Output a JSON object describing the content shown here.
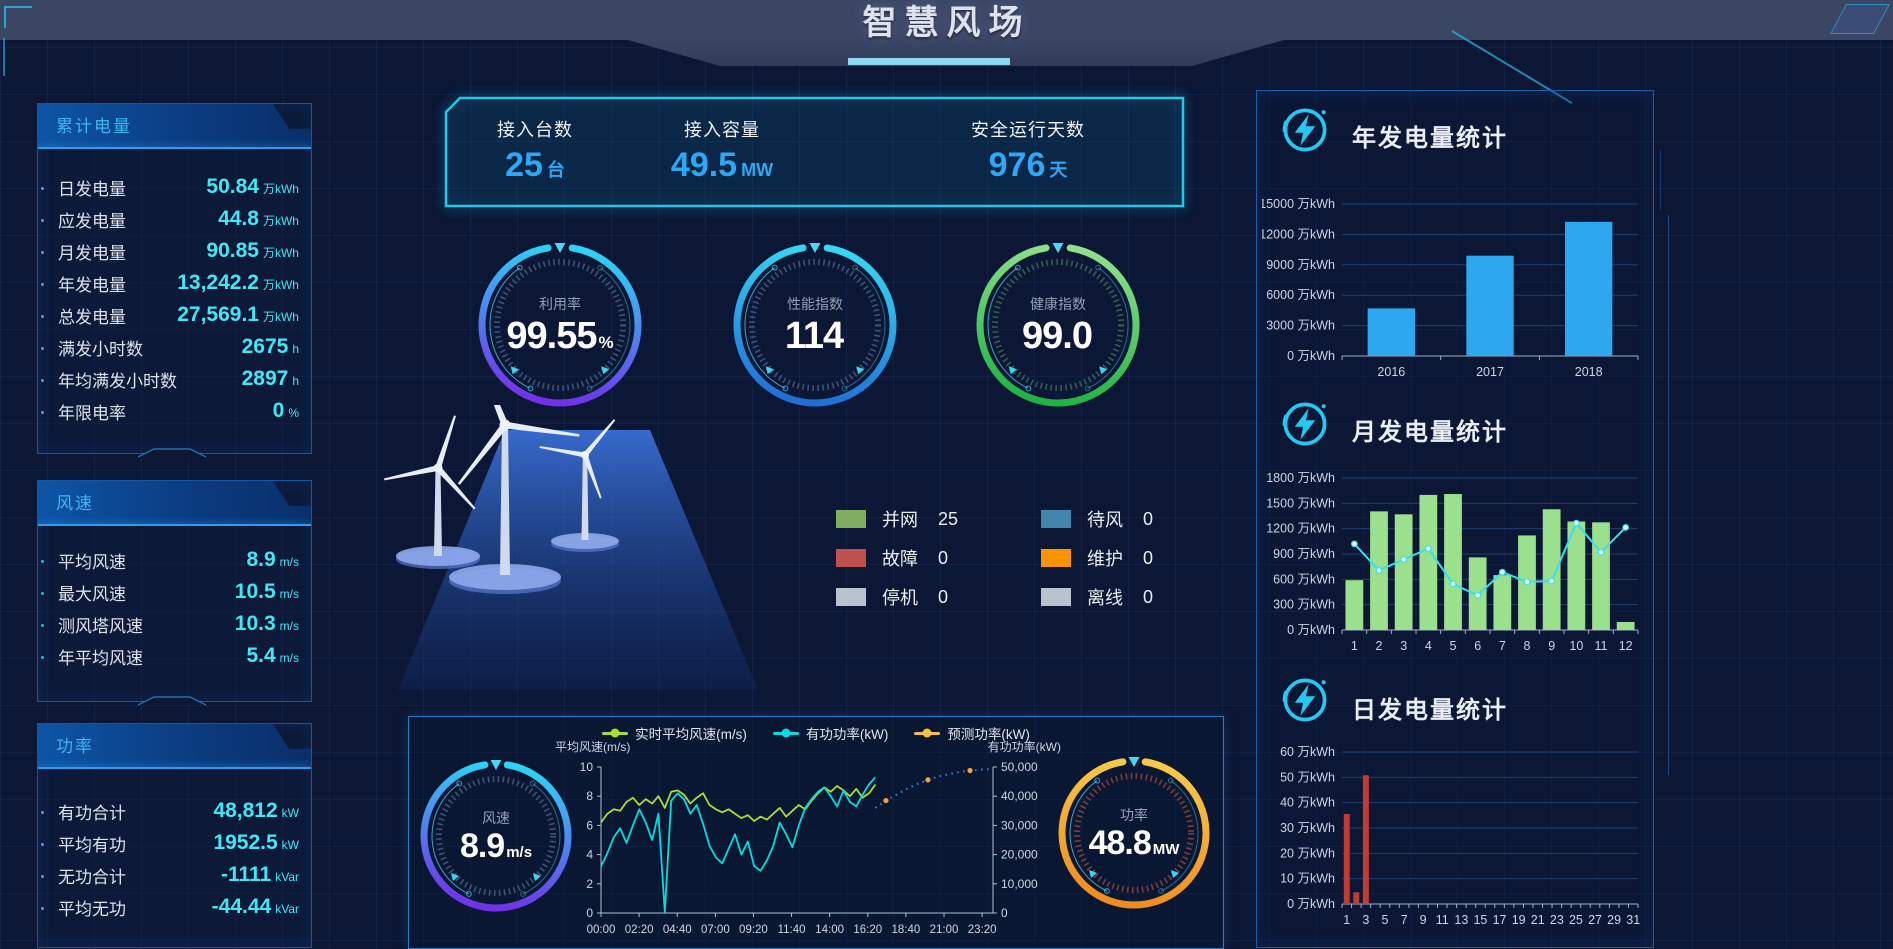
{
  "header": {
    "title": "智慧风场"
  },
  "left_panels": [
    {
      "title": "累计电量",
      "rows": [
        {
          "label": "日发电量",
          "value": "50.84",
          "unit": "万kWh"
        },
        {
          "label": "应发电量",
          "value": "44.8",
          "unit": "万kWh"
        },
        {
          "label": "月发电量",
          "value": "90.85",
          "unit": "万kWh"
        },
        {
          "label": "年发电量",
          "value": "13,242.2",
          "unit": "万kWh"
        },
        {
          "label": "总发电量",
          "value": "27,569.1",
          "unit": "万kWh"
        },
        {
          "label": "满发小时数",
          "value": "2675",
          "unit": "h"
        },
        {
          "label": "年均满发小时数",
          "value": "2897",
          "unit": "h"
        },
        {
          "label": "年限电率",
          "value": "0",
          "unit": "%"
        }
      ]
    },
    {
      "title": "风速",
      "rows": [
        {
          "label": "平均风速",
          "value": "8.9",
          "unit": "m/s"
        },
        {
          "label": "最大风速",
          "value": "10.5",
          "unit": "m/s"
        },
        {
          "label": "测风塔风速",
          "value": "10.3",
          "unit": "m/s"
        },
        {
          "label": "年平均风速",
          "value": "5.4",
          "unit": "m/s"
        }
      ]
    },
    {
      "title": "功率",
      "rows": [
        {
          "label": "有功合计",
          "value": "48,812",
          "unit": "kW"
        },
        {
          "label": "平均有功",
          "value": "1952.5",
          "unit": "kW"
        },
        {
          "label": "无功合计",
          "value": "-1111",
          "unit": "kVar"
        },
        {
          "label": "平均无功",
          "value": "-44.44",
          "unit": "kVar"
        }
      ]
    }
  ],
  "top_stats": [
    {
      "label": "接入台数",
      "value": "25",
      "unit": "台"
    },
    {
      "label": "接入容量",
      "value": "49.5",
      "unit": "MW"
    },
    {
      "label": "安全运行天数",
      "value": "976",
      "unit": "天"
    }
  ],
  "kpi_gauges": [
    {
      "label": "利用率",
      "value": "99.55",
      "unit": "%",
      "colors": [
        "#7231e8",
        "#2bd4f5"
      ],
      "tick": "rgba(140,172,214,0.40)"
    },
    {
      "label": "性能指数",
      "value": "114",
      "unit": "",
      "colors": [
        "#1f6fd6",
        "#35d8f2"
      ],
      "tick": "rgba(140,172,214,0.40)"
    },
    {
      "label": "健康指数",
      "value": "99.0",
      "unit": "",
      "colors": [
        "#1fb344",
        "#8ee08a"
      ],
      "tick": "rgba(120,200,130,0.40)"
    }
  ],
  "turbine_status": [
    {
      "label": "并网",
      "count": "25",
      "color": "#7fae5e"
    },
    {
      "label": "待风",
      "count": "0",
      "color": "#4186ad"
    },
    {
      "label": "故障",
      "count": "0",
      "color": "#c0504d"
    },
    {
      "label": "维护",
      "count": "0",
      "color": "#f79400"
    },
    {
      "label": "停机",
      "count": "0",
      "color": "#b9c3cd"
    },
    {
      "label": "离线",
      "count": "0",
      "color": "#b9c3cd"
    }
  ],
  "realtime_panel": {
    "legend": [
      {
        "label": "实时平均风速(m/s)",
        "color": "#aadc32"
      },
      {
        "label": "有功功率(kW)",
        "color": "#00dede"
      },
      {
        "label": "预测功率(kW)",
        "color": "#f2c23e"
      }
    ],
    "wind_gauge": {
      "label": "风速",
      "value": "8.9",
      "unit": "m/s",
      "colors": [
        "#7231e8",
        "#2bd4f5"
      ],
      "tick": "rgba(140,172,214,0.40)"
    },
    "power_gauge": {
      "label": "功率",
      "value": "48.8",
      "unit": "MW",
      "colors": [
        "#f08c1e",
        "#f7c948"
      ],
      "tick": "rgba(196,90,60,0.60)"
    }
  },
  "right_sections": [
    {
      "title": "年发电量统计"
    },
    {
      "title": "月发电量统计"
    },
    {
      "title": "日发电量统计"
    }
  ],
  "chart_data": [
    {
      "id": "annual",
      "type": "bar",
      "title": "年发电量统计",
      "unit": "万kWh",
      "categories": [
        "2016",
        "2017",
        "2018"
      ],
      "values": [
        4700,
        9900,
        13242
      ],
      "ylim": [
        0,
        15000
      ],
      "ystep": 3000,
      "bar_color": "#2da7f0",
      "bar_frac": 0.48
    },
    {
      "id": "monthly",
      "type": "bar+line",
      "title": "月发电量统计",
      "unit": "万kWh",
      "categories": [
        "1",
        "2",
        "3",
        "4",
        "5",
        "6",
        "7",
        "8",
        "9",
        "10",
        "11",
        "12"
      ],
      "values": [
        590,
        1405,
        1370,
        1600,
        1610,
        860,
        650,
        1120,
        1430,
        1285,
        1275,
        95
      ],
      "line_values": [
        1020,
        705,
        835,
        965,
        545,
        410,
        685,
        570,
        580,
        1265,
        920,
        1215
      ],
      "line_color": "#35e0f0",
      "ylim": [
        0,
        1800
      ],
      "ystep": 300,
      "bar_color": "#9be08c",
      "bar_frac": 0.72
    },
    {
      "id": "daily",
      "type": "bar",
      "title": "日发电量统计",
      "unit": "万kWh",
      "categories": [
        "1",
        "2",
        "3",
        "4",
        "5",
        "6",
        "7",
        "8",
        "9",
        "10",
        "11",
        "12",
        "13",
        "14",
        "15",
        "16",
        "17",
        "18",
        "19",
        "20",
        "21",
        "22",
        "23",
        "24",
        "25",
        "26",
        "27",
        "28",
        "29",
        "30",
        "31"
      ],
      "values": [
        35.5,
        4.6,
        50.84,
        0,
        0,
        0,
        0,
        0,
        0,
        0,
        0,
        0,
        0,
        0,
        0,
        0,
        0,
        0,
        0,
        0,
        0,
        0,
        0,
        0,
        0,
        0,
        0,
        0,
        0,
        0,
        0
      ],
      "ylim": [
        0,
        60
      ],
      "ystep": 10,
      "bar_color": "#c23b32",
      "bar_frac": 0.62,
      "label_every": 2
    },
    {
      "id": "realtime",
      "type": "line",
      "left_axis": {
        "label": "平均风速(m/s)",
        "lim": [
          0,
          10
        ],
        "step": 2
      },
      "right_axis": {
        "label": "有功功率(kW)",
        "lim": [
          0,
          50000
        ],
        "step": 10000
      },
      "x_ticks": [
        "00:00",
        "02:20",
        "04:40",
        "07:00",
        "09:20",
        "11:40",
        "14:00",
        "16:20",
        "18:40",
        "21:00",
        "23:20"
      ],
      "series": [
        {
          "name": "实时平均风速(m/s)",
          "axis": "left",
          "color": "#aadc32",
          "x_span": [
            0,
            0.7
          ],
          "values": [
            6.2,
            6.8,
            7.1,
            7.0,
            7.6,
            7.9,
            7.4,
            7.8,
            7.5,
            8.0,
            7.2,
            8.3,
            8.4,
            8.1,
            7.5,
            7.9,
            8.2,
            7.4,
            7.1,
            6.9,
            7.1,
            6.8,
            6.5,
            6.7,
            6.3,
            6.6,
            6.4,
            6.8,
            7.2,
            6.6,
            7.0,
            7.4,
            7.1,
            7.7,
            8.2,
            8.6,
            8.3,
            8.7,
            8.4,
            8.0,
            8.5,
            7.9,
            8.2,
            8.8
          ]
        },
        {
          "name": "有功功率(kW)",
          "axis": "right",
          "color": "#00dede",
          "x_span": [
            0,
            0.7
          ],
          "values": [
            16000,
            20500,
            26000,
            29000,
            24000,
            30000,
            35500,
            31000,
            25000,
            34000,
            400,
            38500,
            41000,
            39000,
            34000,
            37000,
            30500,
            23000,
            19000,
            17000,
            22000,
            27000,
            20000,
            24500,
            16000,
            14500,
            18000,
            23000,
            31000,
            27000,
            22500,
            30000,
            36000,
            39000,
            41500,
            43000,
            40000,
            36500,
            42000,
            38000,
            36500,
            40500,
            44000,
            46500
          ]
        },
        {
          "name": "预测功率(kW)",
          "axis": "right",
          "color": "#3f86d8",
          "style": "dotted",
          "marker_color": "#f2a33c",
          "x_span": [
            0.7,
            0.995
          ],
          "values": [
            36000,
            38500,
            40500,
            42500,
            44200,
            45600,
            46700,
            47600,
            48300,
            48800,
            49100,
            49300
          ]
        }
      ]
    }
  ]
}
